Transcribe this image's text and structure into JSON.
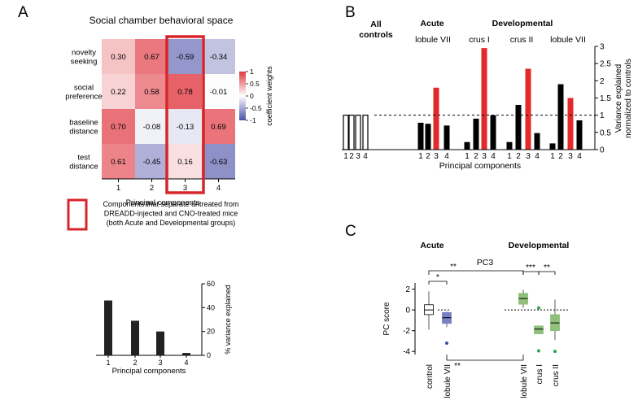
{
  "panels": {
    "A": {
      "letter": "A",
      "heatmap": {
        "title": "Social chamber behavioral space",
        "rows": [
          "novelty seeking",
          "social preference",
          "baseline distance",
          "test distance"
        ],
        "row_lines": [
          [
            "novelty",
            "seeking"
          ],
          [
            "social",
            "preference"
          ],
          [
            "baseline",
            "distance"
          ],
          [
            "test",
            "distance"
          ]
        ],
        "cols": [
          "1",
          "2",
          "3",
          "4"
        ],
        "values": [
          [
            0.3,
            0.67,
            -0.59,
            -0.34
          ],
          [
            0.22,
            0.58,
            0.78,
            -0.01
          ],
          [
            0.7,
            -0.08,
            -0.13,
            0.69
          ],
          [
            0.61,
            -0.45,
            0.16,
            -0.63
          ]
        ],
        "labels": [
          [
            "0.30",
            "0.67",
            "-0.59",
            "-0.34"
          ],
          [
            "0.22",
            "0.58",
            "0.78",
            "-0.01"
          ],
          [
            "0.70",
            "-0.08",
            "-0.13",
            "0.69"
          ],
          [
            "0.61",
            "-0.45",
            "0.16",
            "-0.63"
          ]
        ],
        "highlight_col": 2,
        "xlabel": "Principal components",
        "colorbar": {
          "label": "coefficient weights",
          "ticks": [
            "1",
            "0.5",
            "0",
            "-0.5",
            "-1"
          ],
          "tick_values": [
            1,
            0.5,
            0,
            -0.5,
            -1
          ]
        }
      },
      "legend": {
        "lines": [
          "Components that separate untreated from",
          "DREADD-injected and CNO-treated mice",
          "(both Acute and Developmental groups)"
        ],
        "color": "#d7262b"
      }
    },
    "B": {
      "letter": "B",
      "group_labels": {
        "all_controls": [
          "All",
          "controls"
        ],
        "acute": "Acute",
        "developmental": "Developmental"
      },
      "sub_labels": [
        "lobule VII",
        "crus I",
        "crus II",
        "lobule VII"
      ],
      "xlabel": "Principal components",
      "ylabel": [
        "Variance explained",
        "normalized to controls"
      ]
    },
    "C": {
      "letter": "C",
      "group_labels": {
        "acute": "Acute",
        "developmental": "Developmental"
      },
      "title": "PC3",
      "ylabel": "PC score",
      "xtick_labels": [
        "control",
        "lobule VII",
        "lobule VII",
        "crus I",
        "crus II"
      ],
      "significance": [
        "**",
        "*",
        "***",
        "**",
        "**"
      ]
    }
  },
  "colors": {
    "red": "#e32a2a",
    "blue": "#7b7fc4",
    "green": "#8ec07c",
    "green_dot": "#2fa34a",
    "blue_dot": "#3a4ba8",
    "highlight": "#d7262b"
  },
  "chart_data": [
    {
      "id": "A-heatmap",
      "type": "heatmap",
      "title": "Social chamber behavioral space",
      "xlabel": "Principal components",
      "categories_x": [
        "1",
        "2",
        "3",
        "4"
      ],
      "categories_y": [
        "novelty seeking",
        "social preference",
        "baseline distance",
        "test distance"
      ],
      "values": [
        [
          0.3,
          0.67,
          -0.59,
          -0.34
        ],
        [
          0.22,
          0.58,
          0.78,
          -0.01
        ],
        [
          0.7,
          -0.08,
          -0.13,
          0.69
        ],
        [
          0.61,
          -0.45,
          0.16,
          -0.63
        ]
      ],
      "zlim": [
        -1,
        1
      ],
      "colorbar_label": "coefficient weights"
    },
    {
      "id": "A-variance",
      "type": "bar",
      "categories": [
        "1",
        "2",
        "3",
        "4"
      ],
      "values": [
        46,
        29,
        20,
        2
      ],
      "xlabel": "Principal components",
      "ylabel": "% variance explained",
      "ylim": [
        0,
        60
      ],
      "yticks": [
        0,
        20,
        40,
        60
      ],
      "ytick_labels": [
        "0",
        "20",
        "40",
        "60"
      ]
    },
    {
      "id": "B",
      "type": "bar",
      "xlabel": "Principal components",
      "ylabel": "Variance explained normalized to controls",
      "ylim": [
        0,
        3
      ],
      "yticks": [
        0,
        0.5,
        1,
        1.5,
        2,
        2.5,
        3
      ],
      "ytick_labels": [
        "0",
        "0.5",
        "1",
        "1.5",
        "2",
        "2.5",
        "3"
      ],
      "reference_line": 1,
      "categories": [
        "1",
        "2",
        "3",
        "4"
      ],
      "series": [
        {
          "name": "All controls",
          "values": [
            1,
            1,
            1,
            1
          ],
          "colors": [
            "#ffffff",
            "#ffffff",
            "#ffffff",
            "#ffffff"
          ]
        },
        {
          "name": "Acute lobule VII",
          "values": [
            0.78,
            0.75,
            1.8,
            0.7
          ],
          "colors": [
            "#000000",
            "#000000",
            "#e32a2a",
            "#000000"
          ]
        },
        {
          "name": "Developmental crus I",
          "values": [
            0.22,
            0.9,
            2.95,
            1.0
          ],
          "colors": [
            "#000000",
            "#000000",
            "#e32a2a",
            "#000000"
          ]
        },
        {
          "name": "Developmental crus II",
          "values": [
            0.22,
            1.3,
            2.35,
            0.48
          ],
          "colors": [
            "#000000",
            "#000000",
            "#e32a2a",
            "#000000"
          ]
        },
        {
          "name": "Developmental lobule VII",
          "values": [
            0.18,
            1.9,
            1.5,
            0.85
          ],
          "colors": [
            "#000000",
            "#000000",
            "#e32a2a",
            "#000000"
          ]
        }
      ]
    },
    {
      "id": "C",
      "type": "box",
      "title": "PC3",
      "ylabel": "PC score",
      "ylim": [
        -4.3,
        2.6
      ],
      "yticks": [
        2,
        0,
        -2,
        -4
      ],
      "ytick_labels": [
        "2",
        "0",
        "-2",
        "-4"
      ],
      "reference_line": 0,
      "groups": [
        {
          "label": "control",
          "median": 0.0,
          "q1": -0.45,
          "q3": 0.5,
          "whislo": -1.9,
          "whishi": 1.8,
          "fliers": [],
          "color": "#ffffff"
        },
        {
          "label": "lobule VII (Acute)",
          "median": -0.75,
          "q1": -1.3,
          "q3": -0.25,
          "whislo": -1.65,
          "whishi": -0.15,
          "fliers": [
            -3.2
          ],
          "color": "#7b7fc4"
        },
        {
          "label": "lobule VII (Developmental)",
          "median": 1.1,
          "q1": 0.55,
          "q3": 1.6,
          "whislo": 0.2,
          "whishi": 1.95,
          "fliers": [],
          "color": "#8ec07c"
        },
        {
          "label": "crus I",
          "median": -1.85,
          "q1": -2.3,
          "q3": -1.55,
          "whislo": -2.35,
          "whishi": -1.5,
          "fliers": [
            0.2,
            -3.95
          ],
          "color": "#8ec07c"
        },
        {
          "label": "crus II",
          "median": -1.25,
          "q1": -2.0,
          "q3": -0.45,
          "whislo": -2.9,
          "whishi": 1.0,
          "fliers": [
            -4.0
          ],
          "color": "#8ec07c"
        }
      ]
    }
  ]
}
